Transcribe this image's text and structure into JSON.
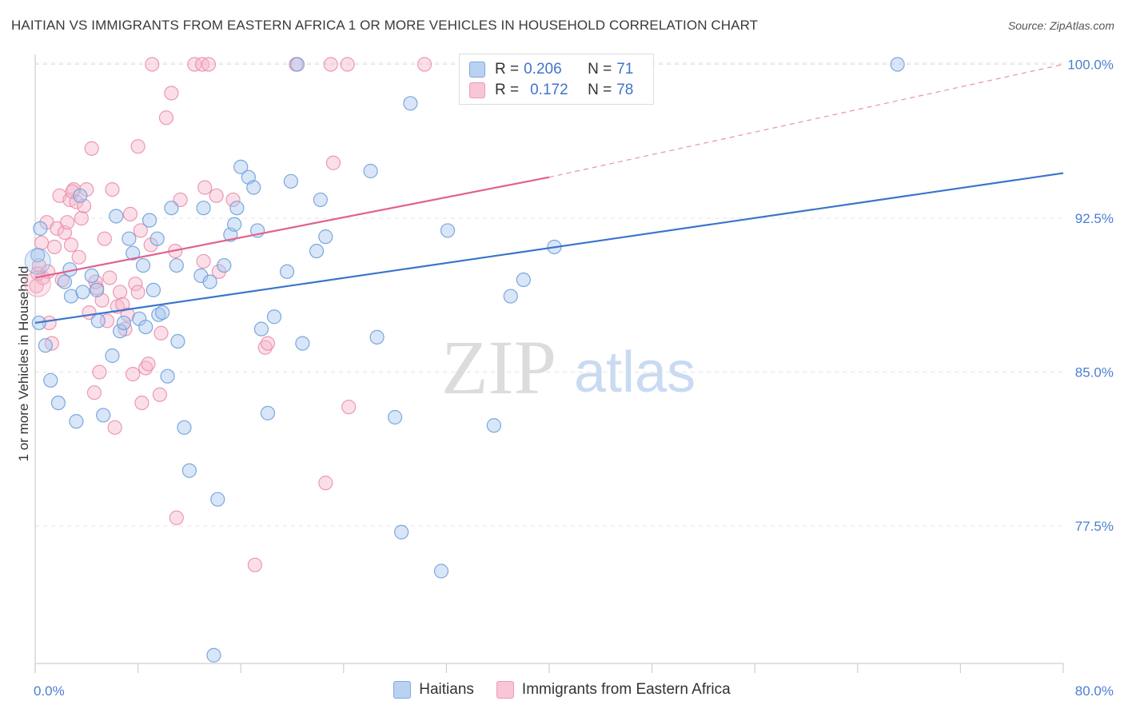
{
  "title": "HAITIAN VS IMMIGRANTS FROM EASTERN AFRICA 1 OR MORE VEHICLES IN HOUSEHOLD CORRELATION CHART",
  "source": "Source: ZipAtlas.com",
  "watermark": {
    "zip": "ZIP",
    "atlas": "atlas"
  },
  "legend": {
    "rows": [
      {
        "r_label": "R =",
        "r_value": "0.206",
        "n_label": "N =",
        "n_value": "71"
      },
      {
        "r_label": "R =",
        "r_value": "0.172",
        "n_label": "N =",
        "n_value": "78"
      }
    ]
  },
  "bottom_legend": {
    "haitians": "Haitians",
    "eastern_africa": "Immigrants from Eastern Africa"
  },
  "colors": {
    "haitians_fill": "#a9c8ef",
    "haitians_stroke": "#6f9fd9",
    "haitians_line": "#3a74cc",
    "ea_fill": "#f6b7cb",
    "ea_stroke": "#ea8fac",
    "ea_line": "#e0628f",
    "grid": "#e3e3e3",
    "axis_text": "#4a7fd0"
  },
  "chart_data": {
    "type": "scatter",
    "title": "HAITIAN VS IMMIGRANTS FROM EASTERN AFRICA 1 OR MORE VEHICLES IN HOUSEHOLD CORRELATION CHART",
    "xlabel": "",
    "ylabel": "1 or more Vehicles in Household",
    "xlim": [
      0,
      80
    ],
    "ylim": [
      70.8,
      100.8
    ],
    "x_ticks": [
      "0.0%",
      "80.0%"
    ],
    "y_ticks": [
      {
        "value": 77.5,
        "label": "77.5%"
      },
      {
        "value": 85.0,
        "label": "85.0%"
      },
      {
        "value": 92.5,
        "label": "92.5%"
      },
      {
        "value": 100.0,
        "label": "100.0%"
      }
    ],
    "grid": true,
    "series": [
      {
        "name": "Haitians",
        "r": 0.206,
        "n": 71,
        "trend": {
          "x": [
            0,
            80
          ],
          "y": [
            87.4,
            94.7
          ],
          "dashed_to": null
        },
        "points": [
          [
            0.2,
            90.7
          ],
          [
            0.3,
            87.4
          ],
          [
            0.8,
            86.3
          ],
          [
            1.2,
            84.6
          ],
          [
            1.8,
            83.5
          ],
          [
            2.3,
            89.4
          ],
          [
            2.8,
            88.7
          ],
          [
            3.2,
            82.6
          ],
          [
            3.5,
            93.6
          ],
          [
            3.7,
            88.9
          ],
          [
            4.4,
            89.7
          ],
          [
            4.8,
            89.0
          ],
          [
            4.9,
            87.5
          ],
          [
            5.3,
            82.9
          ],
          [
            6.0,
            85.8
          ],
          [
            6.3,
            92.6
          ],
          [
            6.6,
            87.0
          ],
          [
            6.9,
            87.4
          ],
          [
            7.3,
            91.5
          ],
          [
            7.6,
            90.8
          ],
          [
            8.1,
            87.6
          ],
          [
            8.4,
            90.2
          ],
          [
            8.6,
            87.2
          ],
          [
            8.9,
            92.4
          ],
          [
            9.5,
            91.5
          ],
          [
            9.6,
            87.8
          ],
          [
            9.9,
            87.9
          ],
          [
            10.3,
            84.8
          ],
          [
            10.6,
            93.0
          ],
          [
            11.0,
            90.2
          ],
          [
            11.1,
            86.5
          ],
          [
            11.6,
            82.3
          ],
          [
            12.0,
            80.2
          ],
          [
            12.9,
            89.7
          ],
          [
            13.1,
            93.0
          ],
          [
            13.6,
            89.4
          ],
          [
            13.9,
            71.2
          ],
          [
            14.2,
            78.8
          ],
          [
            14.7,
            90.2
          ],
          [
            15.2,
            91.7
          ],
          [
            15.5,
            92.2
          ],
          [
            15.7,
            93.0
          ],
          [
            16.0,
            95.0
          ],
          [
            16.6,
            94.5
          ],
          [
            17.0,
            94.0
          ],
          [
            17.3,
            91.9
          ],
          [
            17.6,
            87.1
          ],
          [
            18.1,
            83.0
          ],
          [
            18.6,
            87.7
          ],
          [
            19.6,
            89.9
          ],
          [
            19.9,
            94.3
          ],
          [
            20.4,
            100.0
          ],
          [
            20.8,
            86.4
          ],
          [
            21.9,
            90.9
          ],
          [
            22.2,
            93.4
          ],
          [
            22.6,
            91.6
          ],
          [
            26.1,
            94.8
          ],
          [
            26.6,
            86.7
          ],
          [
            28.0,
            82.8
          ],
          [
            29.2,
            98.1
          ],
          [
            28.5,
            77.2
          ],
          [
            31.6,
            75.3
          ],
          [
            32.1,
            91.9
          ],
          [
            35.7,
            82.4
          ],
          [
            37.0,
            88.7
          ],
          [
            38.0,
            89.5
          ],
          [
            40.4,
            91.1
          ],
          [
            67.1,
            100.0
          ],
          [
            0.4,
            92.0
          ],
          [
            2.7,
            90.0
          ],
          [
            9.2,
            89.0
          ]
        ]
      },
      {
        "name": "Immigrants from Eastern Africa",
        "r": 0.172,
        "n": 78,
        "trend": {
          "x": [
            0,
            40
          ],
          "y": [
            89.6,
            94.5
          ],
          "dashed_to": [
            80,
            100.0
          ]
        },
        "points": [
          [
            0.1,
            89.2
          ],
          [
            0.3,
            90.2
          ],
          [
            0.5,
            91.3
          ],
          [
            0.6,
            89.6
          ],
          [
            0.9,
            92.3
          ],
          [
            1.1,
            87.4
          ],
          [
            1.3,
            86.4
          ],
          [
            1.5,
            91.1
          ],
          [
            1.7,
            92.0
          ],
          [
            1.9,
            93.6
          ],
          [
            2.1,
            89.5
          ],
          [
            2.3,
            91.8
          ],
          [
            2.5,
            92.3
          ],
          [
            2.7,
            93.4
          ],
          [
            2.8,
            91.2
          ],
          [
            3.0,
            93.9
          ],
          [
            3.2,
            93.3
          ],
          [
            3.4,
            90.6
          ],
          [
            3.6,
            92.5
          ],
          [
            3.8,
            93.1
          ],
          [
            4.0,
            93.9
          ],
          [
            4.2,
            87.9
          ],
          [
            4.4,
            95.9
          ],
          [
            4.6,
            84.0
          ],
          [
            4.8,
            89.1
          ],
          [
            5.0,
            85.0
          ],
          [
            5.2,
            88.5
          ],
          [
            5.4,
            91.5
          ],
          [
            5.6,
            87.5
          ],
          [
            5.8,
            89.6
          ],
          [
            6.0,
            93.9
          ],
          [
            6.2,
            82.3
          ],
          [
            6.4,
            88.2
          ],
          [
            6.6,
            88.9
          ],
          [
            6.8,
            88.3
          ],
          [
            7.0,
            87.1
          ],
          [
            7.2,
            87.8
          ],
          [
            7.4,
            92.7
          ],
          [
            7.6,
            84.9
          ],
          [
            7.8,
            89.3
          ],
          [
            8.0,
            88.9
          ],
          [
            8.0,
            96.0
          ],
          [
            8.2,
            91.9
          ],
          [
            8.3,
            83.5
          ],
          [
            8.6,
            85.2
          ],
          [
            8.8,
            85.4
          ],
          [
            9.0,
            91.2
          ],
          [
            9.1,
            100.0
          ],
          [
            9.7,
            83.9
          ],
          [
            9.8,
            86.9
          ],
          [
            10.2,
            97.4
          ],
          [
            10.6,
            98.6
          ],
          [
            10.9,
            90.9
          ],
          [
            11.3,
            93.4
          ],
          [
            12.4,
            100.0
          ],
          [
            13.0,
            100.0
          ],
          [
            13.1,
            90.4
          ],
          [
            13.2,
            94.0
          ],
          [
            13.5,
            100.0
          ],
          [
            14.1,
            93.6
          ],
          [
            14.3,
            89.9
          ],
          [
            15.4,
            93.4
          ],
          [
            17.1,
            75.6
          ],
          [
            17.9,
            86.2
          ],
          [
            18.1,
            86.4
          ],
          [
            20.3,
            100.0
          ],
          [
            22.6,
            79.6
          ],
          [
            23.0,
            100.0
          ],
          [
            23.2,
            95.2
          ],
          [
            24.3,
            100.0
          ],
          [
            24.4,
            83.3
          ],
          [
            30.3,
            100.0
          ],
          [
            33.7,
            100.0
          ],
          [
            11.0,
            77.9
          ],
          [
            0.2,
            89.8
          ],
          [
            1.0,
            89.9
          ],
          [
            2.9,
            93.8
          ],
          [
            4.7,
            89.4
          ]
        ]
      }
    ]
  }
}
